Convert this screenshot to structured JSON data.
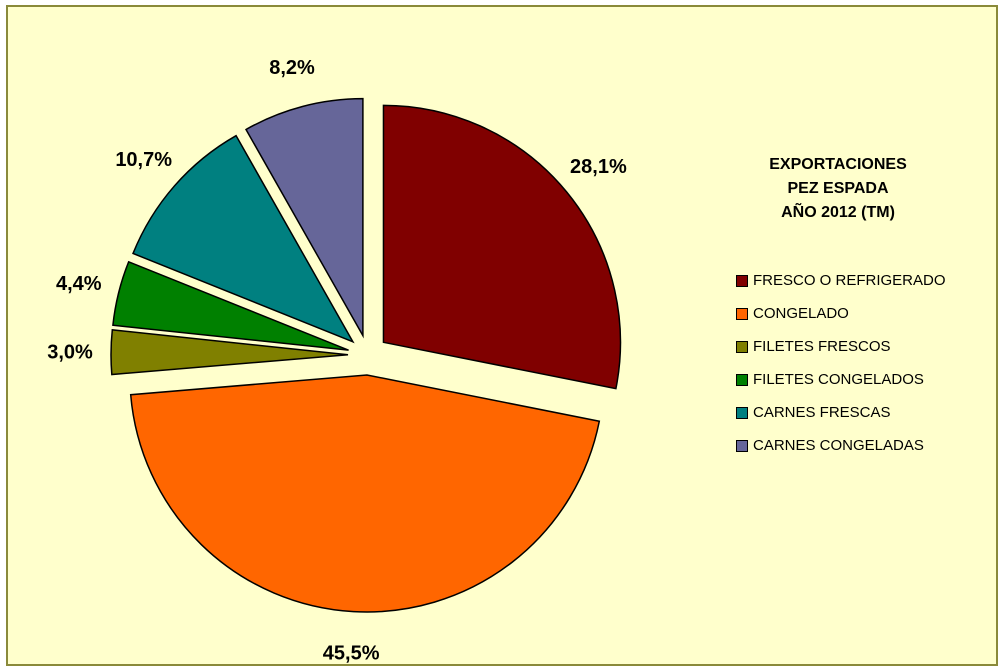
{
  "chart_data": {
    "type": "pie",
    "title_lines": [
      "EXPORTACIONES",
      "PEZ ESPADA",
      "AÑO 2012 (TM)"
    ],
    "categories": [
      "FRESCO O REFRIGERADO",
      "CONGELADO",
      "FILETES FRESCOS",
      "FILETES CONGELADOS",
      "CARNES FRESCAS",
      "CARNES CONGELADAS"
    ],
    "values": [
      28.1,
      45.5,
      3.0,
      4.4,
      10.7,
      8.2
    ],
    "value_labels": [
      "28,1%",
      "45,5%",
      "3,0%",
      "4,4%",
      "10,7%",
      "8,2%"
    ],
    "colors": [
      "#800000",
      "#ff6600",
      "#808000",
      "#008000",
      "#008080",
      "#666699"
    ],
    "legend_position": "right",
    "exploded": true
  }
}
